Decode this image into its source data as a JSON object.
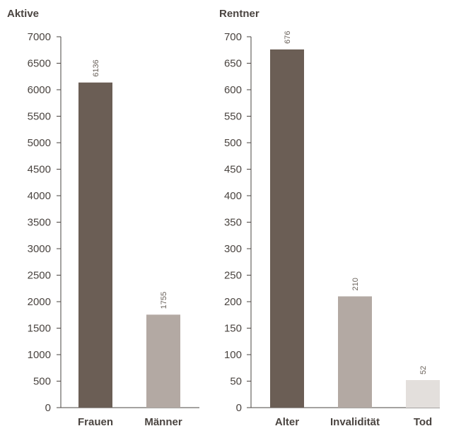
{
  "chart_data": [
    {
      "id": "aktive",
      "type": "bar",
      "title": "Aktive",
      "xlabel": "",
      "ylabel": "",
      "ylim": [
        0,
        7000
      ],
      "yticks": [
        0,
        500,
        1000,
        1500,
        2000,
        2500,
        3000,
        3500,
        4000,
        4500,
        5000,
        5500,
        6000,
        6500,
        7000
      ],
      "grid": false,
      "categories": [
        "Frauen",
        "Männer"
      ],
      "values": [
        6136,
        1755
      ],
      "colors": [
        "#6b5e55",
        "#b3a9a3"
      ]
    },
    {
      "id": "rentner",
      "type": "bar",
      "title": "Rentner",
      "xlabel": "",
      "ylabel": "",
      "ylim": [
        0,
        700
      ],
      "yticks": [
        0,
        50,
        100,
        150,
        200,
        250,
        300,
        350,
        400,
        450,
        500,
        550,
        600,
        650,
        700
      ],
      "grid": false,
      "categories": [
        "Alter",
        "Invalidität",
        "Tod"
      ],
      "values": [
        676,
        210,
        52
      ],
      "colors": [
        "#6b5e55",
        "#b3a9a3",
        "#e3dfdc"
      ]
    }
  ]
}
